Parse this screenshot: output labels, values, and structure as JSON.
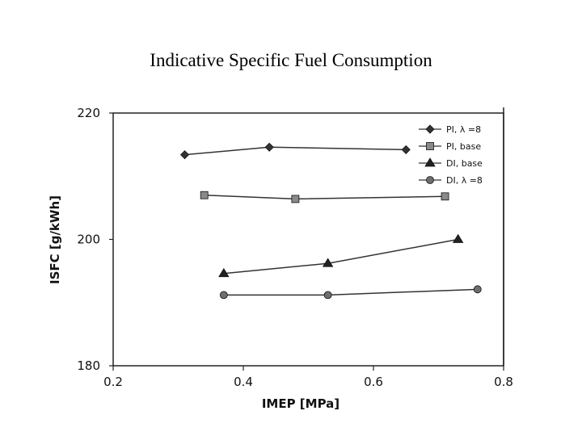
{
  "slide": {
    "title": "Indicative Specific Fuel Consumption"
  },
  "chart_data": {
    "type": "line",
    "title": "Indicative Specific Fuel Consumption",
    "xlabel": "IMEP [MPa]",
    "ylabel": "ISFC [g/kWh]",
    "xlim": [
      0.2,
      0.8
    ],
    "ylim": [
      180,
      220
    ],
    "xticks": [
      0.2,
      0.4,
      0.6,
      0.8
    ],
    "xtick_labels": [
      "0.2",
      "0.4",
      "0.6",
      "0.8"
    ],
    "yticks": [
      180,
      200,
      220
    ],
    "ytick_labels": [
      "180",
      "200",
      "220"
    ],
    "grid": false,
    "legend_position": "top-right",
    "series": [
      {
        "name": "PI,  λ =8",
        "marker": "diamond",
        "color": "#333333",
        "x": [
          0.31,
          0.44,
          0.65
        ],
        "y": [
          213.4,
          214.6,
          214.2
        ]
      },
      {
        "name": "PI, base",
        "marker": "square",
        "color": "#8a8a8a",
        "x": [
          0.34,
          0.48,
          0.71
        ],
        "y": [
          207.0,
          206.4,
          206.8
        ]
      },
      {
        "name": "DI, base",
        "marker": "triangle",
        "color": "#222222",
        "x": [
          0.37,
          0.53,
          0.73
        ],
        "y": [
          194.6,
          196.2,
          200.0
        ]
      },
      {
        "name": "DI,  λ =8",
        "marker": "circle",
        "color": "#6e6e6e",
        "x": [
          0.37,
          0.53,
          0.76
        ],
        "y": [
          191.2,
          191.2,
          192.1
        ]
      }
    ]
  }
}
